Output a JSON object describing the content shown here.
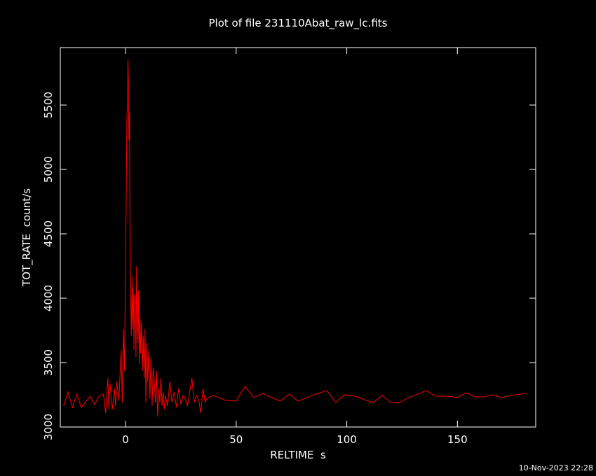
{
  "chart_data": {
    "type": "line",
    "title": "Plot of file 231110Abat_raw_lc.fits",
    "x_label": "RELTIME  s",
    "y_label": "TOT_RATE  count/s",
    "timestamp": "10-Nov-2023 22:28",
    "xlim": [
      -29.5,
      185.4
    ],
    "ylim": [
      3000,
      5946
    ],
    "xticks": [
      0,
      50,
      100,
      150
    ],
    "yticks": [
      3000,
      3500,
      4000,
      4500,
      5000,
      5500
    ],
    "x": [
      -28,
      -26,
      -24,
      -22,
      -20,
      -16,
      -14,
      -12,
      -10,
      -9,
      -8,
      -7.5,
      -7,
      -6,
      -5,
      -4.5,
      -4,
      -3,
      -2,
      -1.5,
      -1,
      -0.5,
      0,
      0.3,
      0.6,
      0.9,
      1.1,
      1.3,
      1.5,
      1.8,
      2,
      2.3,
      2.6,
      2.9,
      3.2,
      3.5,
      3.8,
      4.1,
      4.4,
      4.7,
      5,
      5.3,
      5.6,
      5.9,
      6.2,
      6.5,
      6.8,
      7.2,
      7.6,
      8,
      8.4,
      8.8,
      9.2,
      9.6,
      10,
      10.5,
      11,
      11.5,
      12,
      12.5,
      13,
      13.5,
      14,
      14.5,
      15,
      15.5,
      16,
      16.5,
      17,
      17.5,
      18,
      19,
      20,
      21,
      22,
      23,
      24,
      25,
      26,
      27,
      28,
      29,
      30,
      31,
      32,
      33,
      34,
      35,
      36,
      37,
      40,
      45,
      50,
      54,
      58,
      62,
      66,
      70,
      74,
      78,
      82,
      86,
      91,
      95,
      99,
      104,
      108,
      112,
      116,
      120,
      124,
      128,
      132,
      136,
      140,
      146,
      150,
      154,
      158,
      162,
      166,
      170,
      174,
      181
    ],
    "series": [
      {
        "name": "TOT_RATE",
        "color": "#ff0000",
        "values": [
          3163,
          3272,
          3152,
          3255,
          3152,
          3239,
          3174,
          3239,
          3255,
          3109,
          3380,
          3136,
          3337,
          3136,
          3299,
          3163,
          3353,
          3207,
          3598,
          3190,
          3761,
          3435,
          4250,
          4793,
          5391,
          5554,
          5853,
          5663,
          5228,
          5446,
          4576,
          4033,
          3707,
          4168,
          3761,
          4087,
          3598,
          4033,
          3978,
          3543,
          4250,
          3761,
          3652,
          4060,
          3489,
          3842,
          3571,
          3815,
          3435,
          3707,
          3380,
          3761,
          3190,
          3652,
          3353,
          3598,
          3217,
          3543,
          3163,
          3462,
          3353,
          3190,
          3435,
          3082,
          3299,
          3190,
          3380,
          3163,
          3272,
          3136,
          3245,
          3163,
          3353,
          3190,
          3272,
          3152,
          3299,
          3174,
          3245,
          3217,
          3163,
          3272,
          3380,
          3190,
          3245,
          3217,
          3109,
          3299,
          3190,
          3228,
          3245,
          3207,
          3201,
          3315,
          3228,
          3261,
          3228,
          3201,
          3255,
          3201,
          3228,
          3255,
          3283,
          3190,
          3250,
          3239,
          3212,
          3190,
          3245,
          3190,
          3190,
          3228,
          3255,
          3283,
          3239,
          3239,
          3228,
          3266,
          3234,
          3234,
          3250,
          3228,
          3245,
          3261
        ]
      }
    ]
  }
}
